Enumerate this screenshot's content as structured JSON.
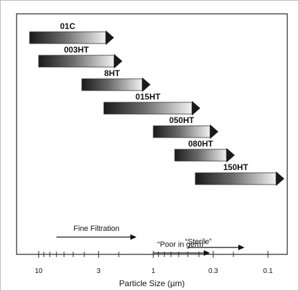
{
  "chart_data": {
    "type": "bar",
    "xlabel": "Particle Size (µm)",
    "x_scale": "log",
    "x_direction": "decreasing",
    "xlim": [
      15,
      0.08
    ],
    "tick_labels": [
      {
        "value": 10,
        "label": "10"
      },
      {
        "value": 3,
        "label": "3"
      },
      {
        "value": 1,
        "label": "1"
      },
      {
        "value": 0.3,
        "label": "0.3"
      },
      {
        "value": 0.1,
        "label": "0.1"
      }
    ],
    "minor_ticks": [
      9,
      8,
      7,
      6,
      5,
      4,
      2,
      0.9,
      0.8,
      0.7,
      0.6,
      0.5,
      0.4,
      0.2
    ],
    "bars": [
      {
        "name": "01C",
        "from": 12,
        "to": 2.6
      },
      {
        "name": "003HT",
        "from": 10,
        "to": 2.2
      },
      {
        "name": "8HT",
        "from": 4.2,
        "to": 1.25
      },
      {
        "name": "015HT",
        "from": 2.7,
        "to": 0.46
      },
      {
        "name": "050HT",
        "from": 1.0,
        "to": 0.32
      },
      {
        "name": "080HT",
        "from": 0.65,
        "to": 0.23
      },
      {
        "name": "150HT",
        "from": 0.43,
        "to": 0.085
      }
    ],
    "ranges": [
      {
        "label": "Fine Filtration",
        "from": 7,
        "to": 1.4
      },
      {
        "label": "“Poor in germ”",
        "from": 1.0,
        "to": 0.32
      },
      {
        "label": "“Sterile”",
        "from": 0.5,
        "to": 0.16
      }
    ],
    "gradient": {
      "dark": "#1a1a1a",
      "light": "#f2f2f2"
    },
    "grid": false,
    "legend": "none"
  }
}
